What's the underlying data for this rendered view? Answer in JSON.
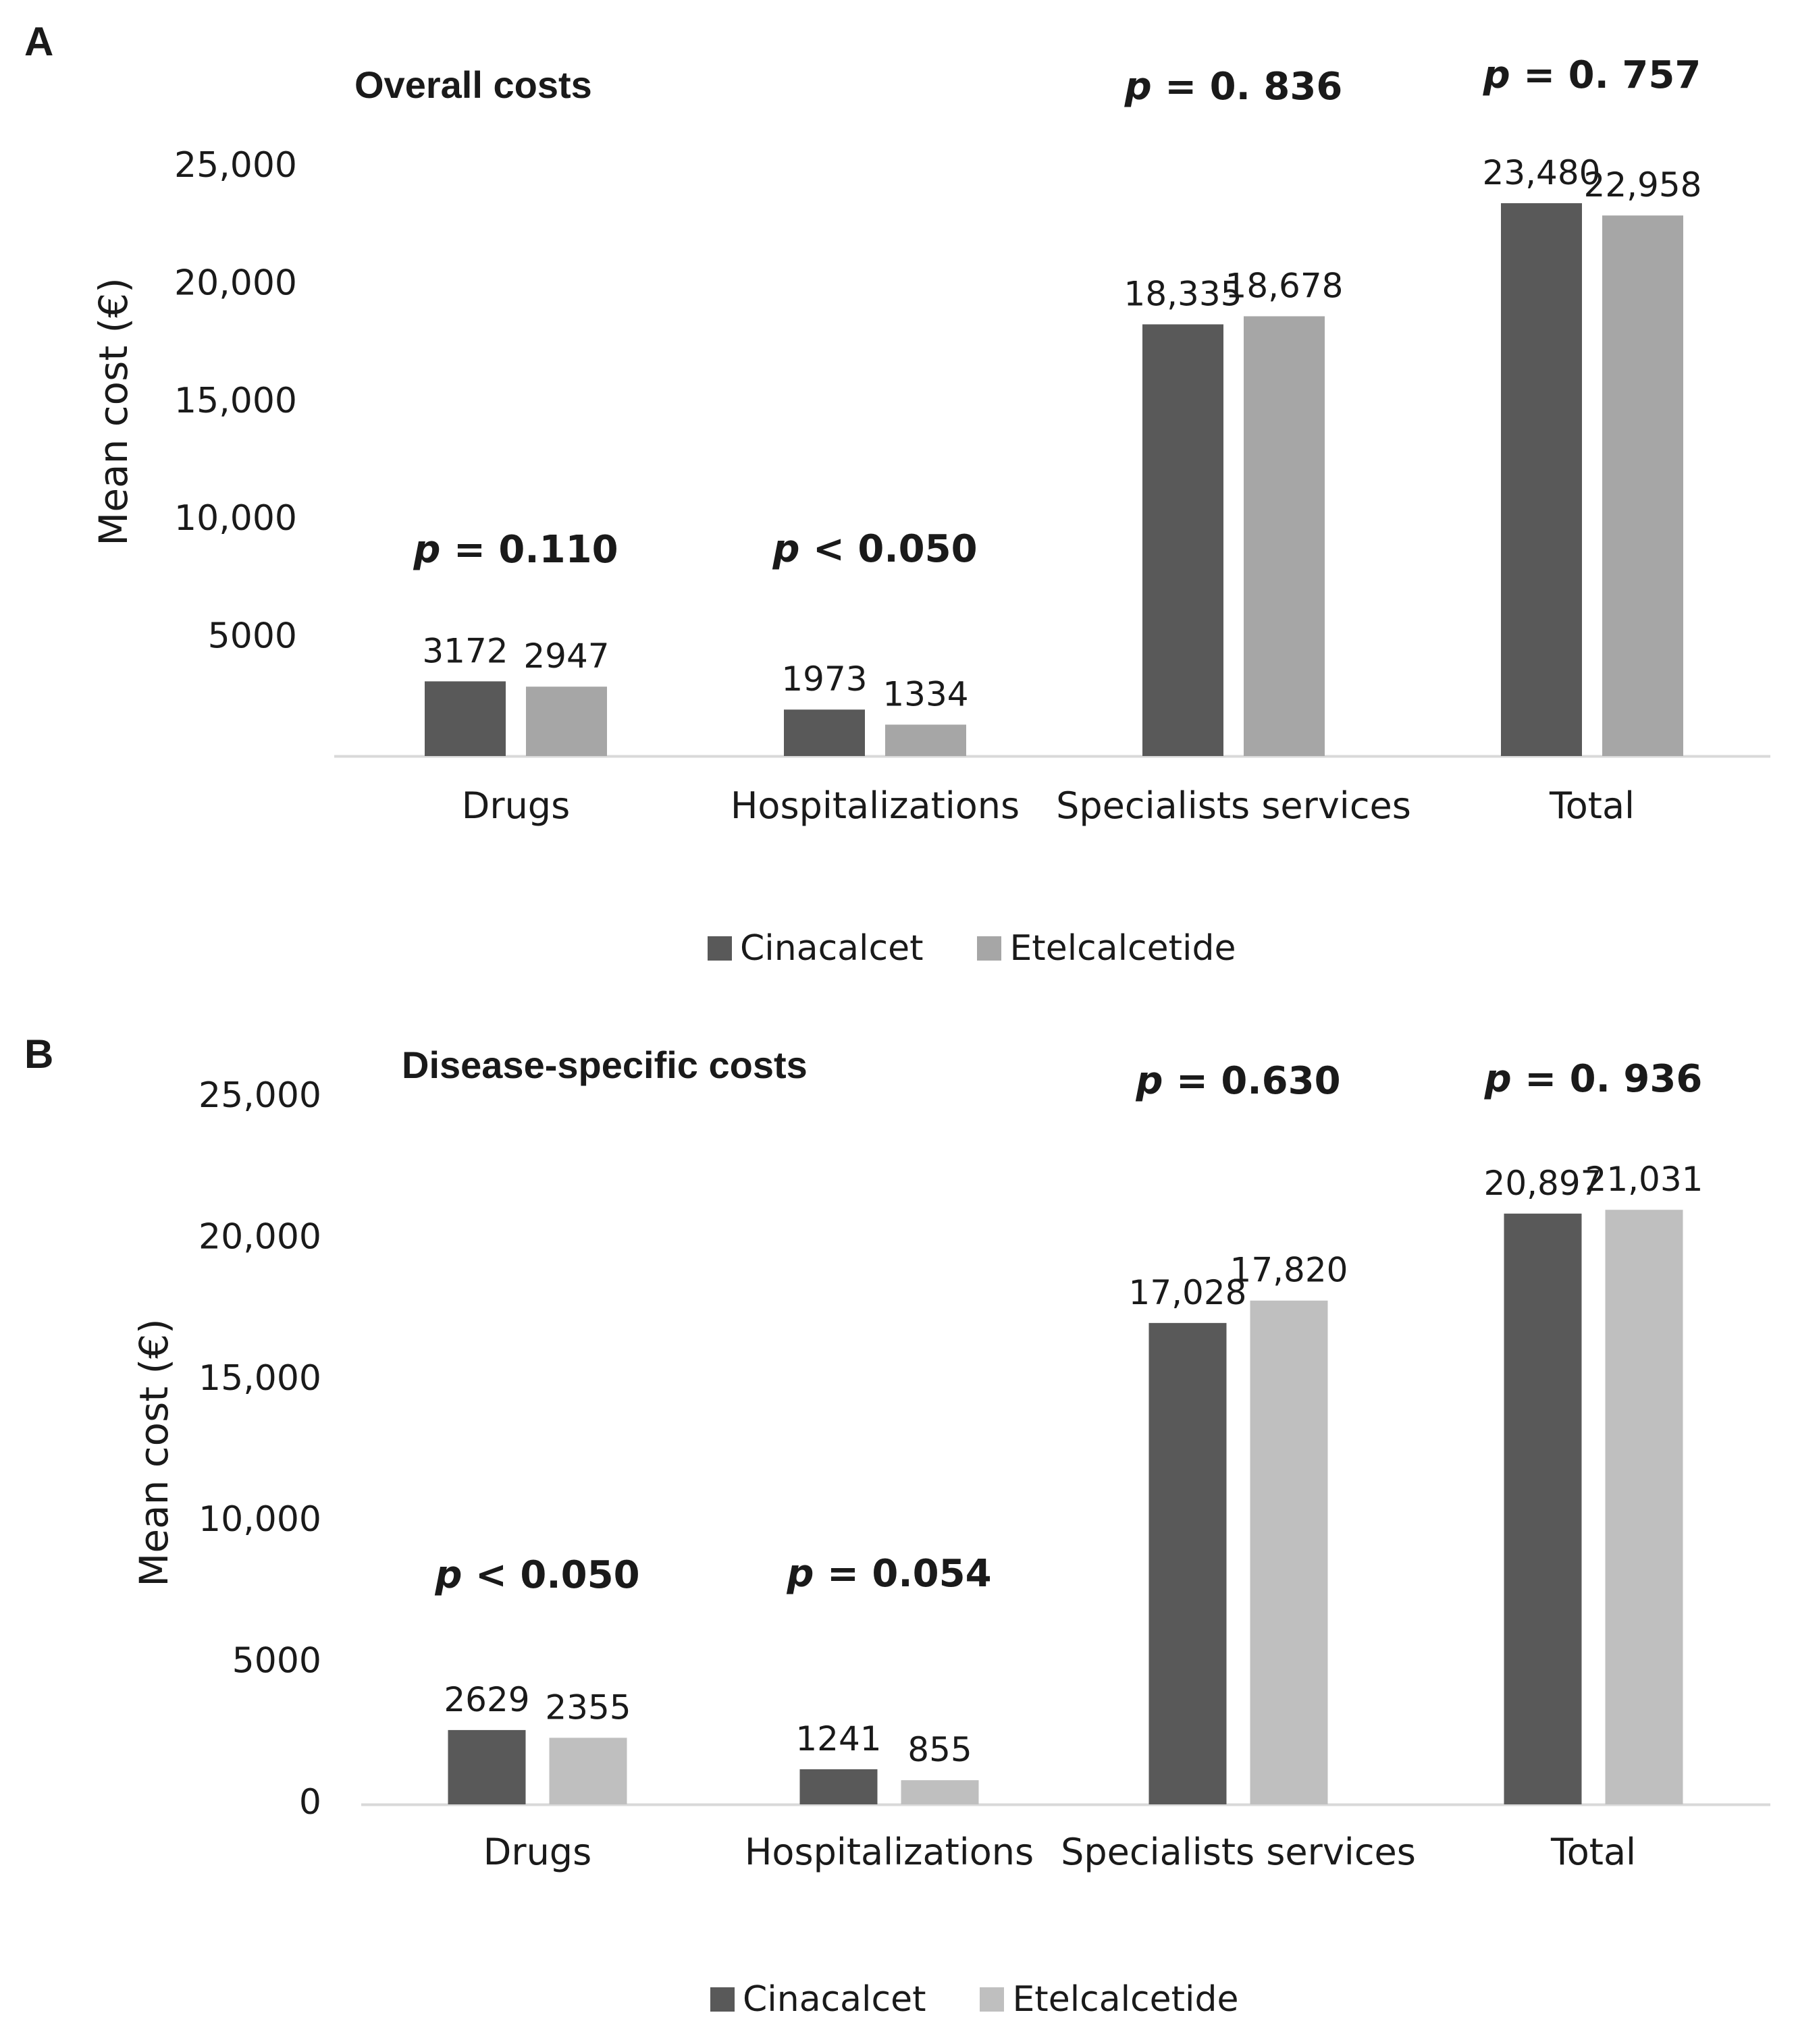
{
  "chart_data": [
    {
      "panel_label": "A",
      "type": "bar",
      "title": "Overall costs",
      "ylabel": "Mean cost (€)",
      "xlabel": "",
      "ylim": [
        0,
        25000
      ],
      "yticks": [
        {
          "value": 5000,
          "label": "5000"
        },
        {
          "value": 10000,
          "label": "10,000"
        },
        {
          "value": 15000,
          "label": "15,000"
        },
        {
          "value": 20000,
          "label": "20,000"
        },
        {
          "value": 25000,
          "label": "25,000"
        }
      ],
      "categories": [
        "Drugs",
        "Hospitalizations",
        "Specialists services",
        "Total"
      ],
      "series": [
        {
          "name": "Cinacalcet",
          "color": "#595959",
          "values": [
            3172,
            1973,
            18335,
            23480
          ],
          "labels": [
            "3172",
            "1973",
            "18,335",
            "23,480"
          ]
        },
        {
          "name": "Etelcalcetide",
          "color": "#a6a6a6",
          "values": [
            2947,
            1334,
            18678,
            22958
          ],
          "labels": [
            "2947",
            "1334",
            "18,678",
            "22,958"
          ]
        }
      ],
      "p_values": [
        {
          "p": "p",
          "rest": " = 0.110"
        },
        {
          "p": "p",
          "rest": " < 0.050"
        },
        {
          "p": "p",
          "rest": " = 0. 836"
        },
        {
          "p": "p",
          "rest": " = 0. 757"
        }
      ],
      "grid": false,
      "legend_position": "bottom"
    },
    {
      "panel_label": "B",
      "type": "bar",
      "title": "Disease-specific costs",
      "ylabel": "Mean cost (€)",
      "xlabel": "",
      "ylim": [
        0,
        25000
      ],
      "yticks": [
        {
          "value": 0,
          "label": "0"
        },
        {
          "value": 5000,
          "label": "5000"
        },
        {
          "value": 10000,
          "label": "10,000"
        },
        {
          "value": 15000,
          "label": "15,000"
        },
        {
          "value": 20000,
          "label": "20,000"
        },
        {
          "value": 25000,
          "label": "25,000"
        }
      ],
      "categories": [
        "Drugs",
        "Hospitalizations",
        "Specialists services",
        "Total"
      ],
      "series": [
        {
          "name": "Cinacalcet",
          "color": "#595959",
          "values": [
            2629,
            1241,
            17028,
            20897
          ],
          "labels": [
            "2629",
            "1241",
            "17,028",
            "20,897"
          ]
        },
        {
          "name": "Etelcalcetide",
          "color": "#bfbfbf",
          "values": [
            2355,
            855,
            17820,
            21031
          ],
          "labels": [
            "2355",
            "855",
            "17,820",
            "21,031"
          ]
        }
      ],
      "p_values": [
        {
          "p": "p",
          "rest": " < 0.050"
        },
        {
          "p": "p",
          "rest": " = 0.054"
        },
        {
          "p": "p",
          "rest": " = 0.630"
        },
        {
          "p": "p",
          "rest": " = 0. 936"
        }
      ],
      "grid": false,
      "legend_position": "bottom"
    }
  ]
}
